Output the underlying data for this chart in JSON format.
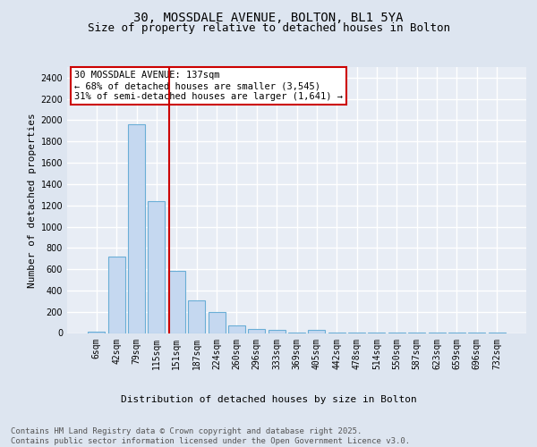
{
  "title1": "30, MOSSDALE AVENUE, BOLTON, BL1 5YA",
  "title2": "Size of property relative to detached houses in Bolton",
  "xlabel": "Distribution of detached houses by size in Bolton",
  "ylabel": "Number of detached properties",
  "categories": [
    "6sqm",
    "42sqm",
    "79sqm",
    "115sqm",
    "151sqm",
    "187sqm",
    "224sqm",
    "260sqm",
    "296sqm",
    "333sqm",
    "369sqm",
    "405sqm",
    "442sqm",
    "478sqm",
    "514sqm",
    "550sqm",
    "587sqm",
    "623sqm",
    "659sqm",
    "696sqm",
    "732sqm"
  ],
  "values": [
    10,
    720,
    1960,
    1240,
    580,
    305,
    200,
    75,
    40,
    28,
    5,
    28,
    5,
    5,
    5,
    5,
    5,
    5,
    5,
    5,
    5
  ],
  "bar_color": "#c5d8f0",
  "bar_edge_color": "#6aaed6",
  "vline_color": "#cc0000",
  "annotation_text": "30 MOSSDALE AVENUE: 137sqm\n← 68% of detached houses are smaller (3,545)\n31% of semi-detached houses are larger (1,641) →",
  "ylim": [
    0,
    2500
  ],
  "yticks": [
    0,
    200,
    400,
    600,
    800,
    1000,
    1200,
    1400,
    1600,
    1800,
    2000,
    2200,
    2400
  ],
  "bg_color": "#dde5f0",
  "plot_bg_color": "#e8edf5",
  "grid_color": "#ffffff",
  "footer": "Contains HM Land Registry data © Crown copyright and database right 2025.\nContains public sector information licensed under the Open Government Licence v3.0.",
  "title_fontsize": 10,
  "subtitle_fontsize": 9,
  "axis_label_fontsize": 8,
  "tick_fontsize": 7,
  "footer_fontsize": 6.5,
  "annot_fontsize": 7.5
}
